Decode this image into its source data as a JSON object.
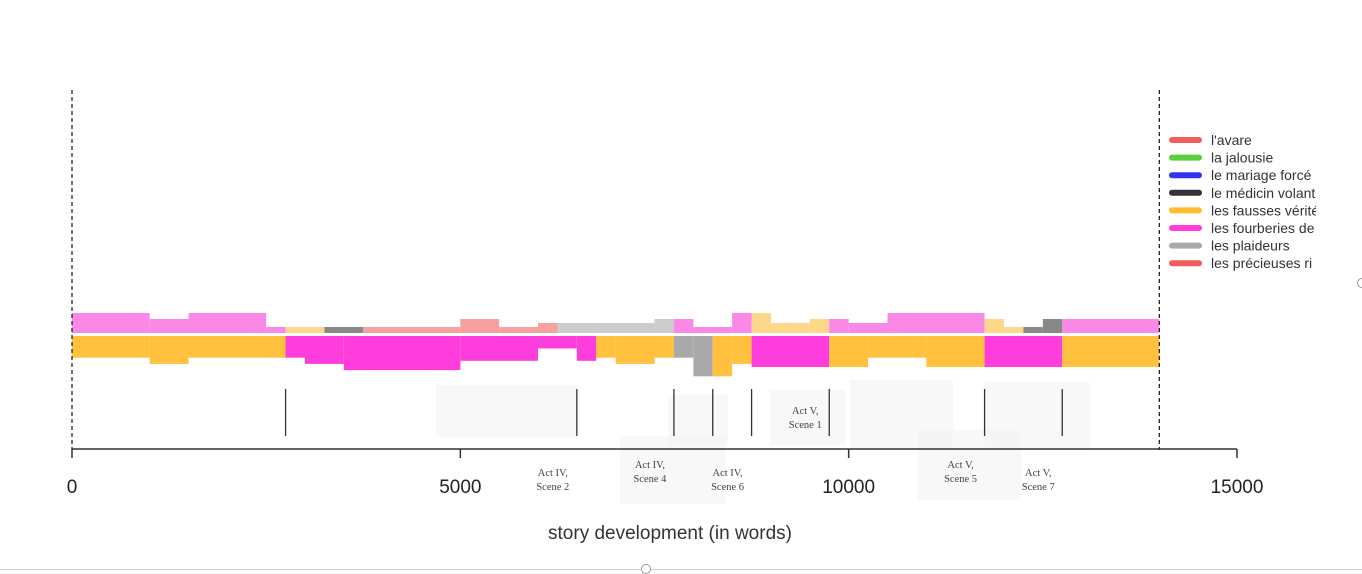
{
  "chart_data": {
    "type": "area",
    "xlabel": "story development (in words)",
    "xlim": [
      0,
      15000
    ],
    "xticks": [
      0,
      5000,
      10000,
      15000
    ],
    "xtick_labels": [
      "0",
      "5000",
      "10000",
      "15000"
    ],
    "story_end": 14000,
    "legend": {
      "placement": "right",
      "entries": [
        {
          "name": "l'avare",
          "color": "#f25c5c"
        },
        {
          "name": "la jalousie",
          "color": "#5ad03c"
        },
        {
          "name": "le mariage forcé",
          "color": "#3333f0"
        },
        {
          "name": "le médicin volant",
          "color": "#333333"
        },
        {
          "name": "les fausses vérités",
          "color": "#ffbc2e"
        },
        {
          "name": "les fourberies de",
          "color": "#ff3cdc"
        },
        {
          "name": "les plaideurs",
          "color": "#aaaaaa"
        },
        {
          "name": "les précieuses ri",
          "color": "#f25c5c"
        }
      ]
    },
    "top_band": [
      {
        "x0": 0,
        "x1": 1000,
        "h": 1.0,
        "color": "#fa88e6"
      },
      {
        "x0": 1000,
        "x1": 1500,
        "h": 0.7,
        "color": "#fa88e6"
      },
      {
        "x0": 1500,
        "x1": 2500,
        "h": 1.0,
        "color": "#fa88e6"
      },
      {
        "x0": 2500,
        "x1": 2750,
        "h": 0.3,
        "color": "#fa88e6"
      },
      {
        "x0": 2750,
        "x1": 3250,
        "h": 0.3,
        "color": "#fdd88a"
      },
      {
        "x0": 3250,
        "x1": 3750,
        "h": 0.3,
        "color": "#888888"
      },
      {
        "x0": 3750,
        "x1": 5000,
        "h": 0.3,
        "color": "#f8a0a0"
      },
      {
        "x0": 5000,
        "x1": 5500,
        "h": 0.7,
        "color": "#f8a0a0"
      },
      {
        "x0": 5500,
        "x1": 6000,
        "h": 0.3,
        "color": "#f8a0a0"
      },
      {
        "x0": 6000,
        "x1": 6250,
        "h": 0.5,
        "color": "#f8a0a0"
      },
      {
        "x0": 6250,
        "x1": 7500,
        "h": 0.5,
        "color": "#cccccc"
      },
      {
        "x0": 7500,
        "x1": 7750,
        "h": 0.7,
        "color": "#cccccc"
      },
      {
        "x0": 7750,
        "x1": 8000,
        "h": 0.7,
        "color": "#fa88e6"
      },
      {
        "x0": 8000,
        "x1": 8500,
        "h": 0.3,
        "color": "#fa88e6"
      },
      {
        "x0": 8500,
        "x1": 8750,
        "h": 1.0,
        "color": "#fa88e6"
      },
      {
        "x0": 8750,
        "x1": 9000,
        "h": 1.0,
        "color": "#fdd88a"
      },
      {
        "x0": 9000,
        "x1": 9500,
        "h": 0.5,
        "color": "#fdd88a"
      },
      {
        "x0": 9500,
        "x1": 9750,
        "h": 0.7,
        "color": "#fdd88a"
      },
      {
        "x0": 9750,
        "x1": 10000,
        "h": 0.7,
        "color": "#fa88e6"
      },
      {
        "x0": 10000,
        "x1": 10500,
        "h": 0.5,
        "color": "#fa88e6"
      },
      {
        "x0": 10500,
        "x1": 11750,
        "h": 1.0,
        "color": "#fa88e6"
      },
      {
        "x0": 11750,
        "x1": 12000,
        "h": 0.7,
        "color": "#fdd88a"
      },
      {
        "x0": 12000,
        "x1": 12250,
        "h": 0.3,
        "color": "#fdd88a"
      },
      {
        "x0": 12250,
        "x1": 12500,
        "h": 0.3,
        "color": "#888888"
      },
      {
        "x0": 12500,
        "x1": 12750,
        "h": 0.7,
        "color": "#888888"
      },
      {
        "x0": 12750,
        "x1": 14000,
        "h": 0.7,
        "color": "#fa88e6"
      }
    ],
    "bottom_band": [
      {
        "x0": 0,
        "x1": 1000,
        "h": 0.35,
        "color": "#ffc13e"
      },
      {
        "x0": 1000,
        "x1": 1500,
        "h": 0.45,
        "color": "#ffc13e"
      },
      {
        "x0": 1500,
        "x1": 2750,
        "h": 0.35,
        "color": "#ffc13e"
      },
      {
        "x0": 2750,
        "x1": 3000,
        "h": 0.35,
        "color": "#ff3cdc"
      },
      {
        "x0": 3000,
        "x1": 3500,
        "h": 0.45,
        "color": "#ff3cdc"
      },
      {
        "x0": 3500,
        "x1": 5000,
        "h": 0.55,
        "color": "#ff3cdc"
      },
      {
        "x0": 5000,
        "x1": 6000,
        "h": 0.4,
        "color": "#ff3cdc"
      },
      {
        "x0": 6000,
        "x1": 6500,
        "h": 0.2,
        "color": "#ff3cdc"
      },
      {
        "x0": 6500,
        "x1": 6750,
        "h": 0.4,
        "color": "#ff3cdc"
      },
      {
        "x0": 6750,
        "x1": 7000,
        "h": 0.35,
        "color": "#ffc13e"
      },
      {
        "x0": 7000,
        "x1": 7500,
        "h": 0.45,
        "color": "#ffc13e"
      },
      {
        "x0": 7500,
        "x1": 7750,
        "h": 0.35,
        "color": "#ffc13e"
      },
      {
        "x0": 7750,
        "x1": 8000,
        "h": 0.35,
        "color": "#aaaaaa"
      },
      {
        "x0": 8000,
        "x1": 8250,
        "h": 0.65,
        "color": "#aaaaaa"
      },
      {
        "x0": 8250,
        "x1": 8500,
        "h": 0.65,
        "color": "#ffc13e"
      },
      {
        "x0": 8500,
        "x1": 8750,
        "h": 0.45,
        "color": "#ffc13e"
      },
      {
        "x0": 8750,
        "x1": 9750,
        "h": 0.5,
        "color": "#ff3cdc"
      },
      {
        "x0": 9750,
        "x1": 10250,
        "h": 0.5,
        "color": "#ffc13e"
      },
      {
        "x0": 10250,
        "x1": 11000,
        "h": 0.35,
        "color": "#ffc13e"
      },
      {
        "x0": 11000,
        "x1": 11750,
        "h": 0.5,
        "color": "#ffc13e"
      },
      {
        "x0": 11750,
        "x1": 12750,
        "h": 0.5,
        "color": "#ff3cdc"
      },
      {
        "x0": 12750,
        "x1": 14000,
        "h": 0.5,
        "color": "#ffc13e"
      }
    ],
    "scene_markers": [
      2750,
      6500,
      7750,
      8250,
      8750,
      9750,
      11750,
      12750
    ],
    "scene_annotations": [
      {
        "x": 6500,
        "line1": "Act IV,",
        "line2": "Scene 2",
        "row": 0
      },
      {
        "x": 7750,
        "line1": "Act IV,",
        "line2": "Scene 4",
        "row": 1
      },
      {
        "x": 8750,
        "line1": "Act IV,",
        "line2": "Scene 6",
        "row": 0
      },
      {
        "x": 9750,
        "line1": "Act V,",
        "line2": "Scene 1",
        "row": 2
      },
      {
        "x": 11750,
        "line1": "Act V,",
        "line2": "Scene 5",
        "row": 1
      },
      {
        "x": 12750,
        "line1": "Act V,",
        "line2": "Scene 7",
        "row": 0
      }
    ]
  }
}
